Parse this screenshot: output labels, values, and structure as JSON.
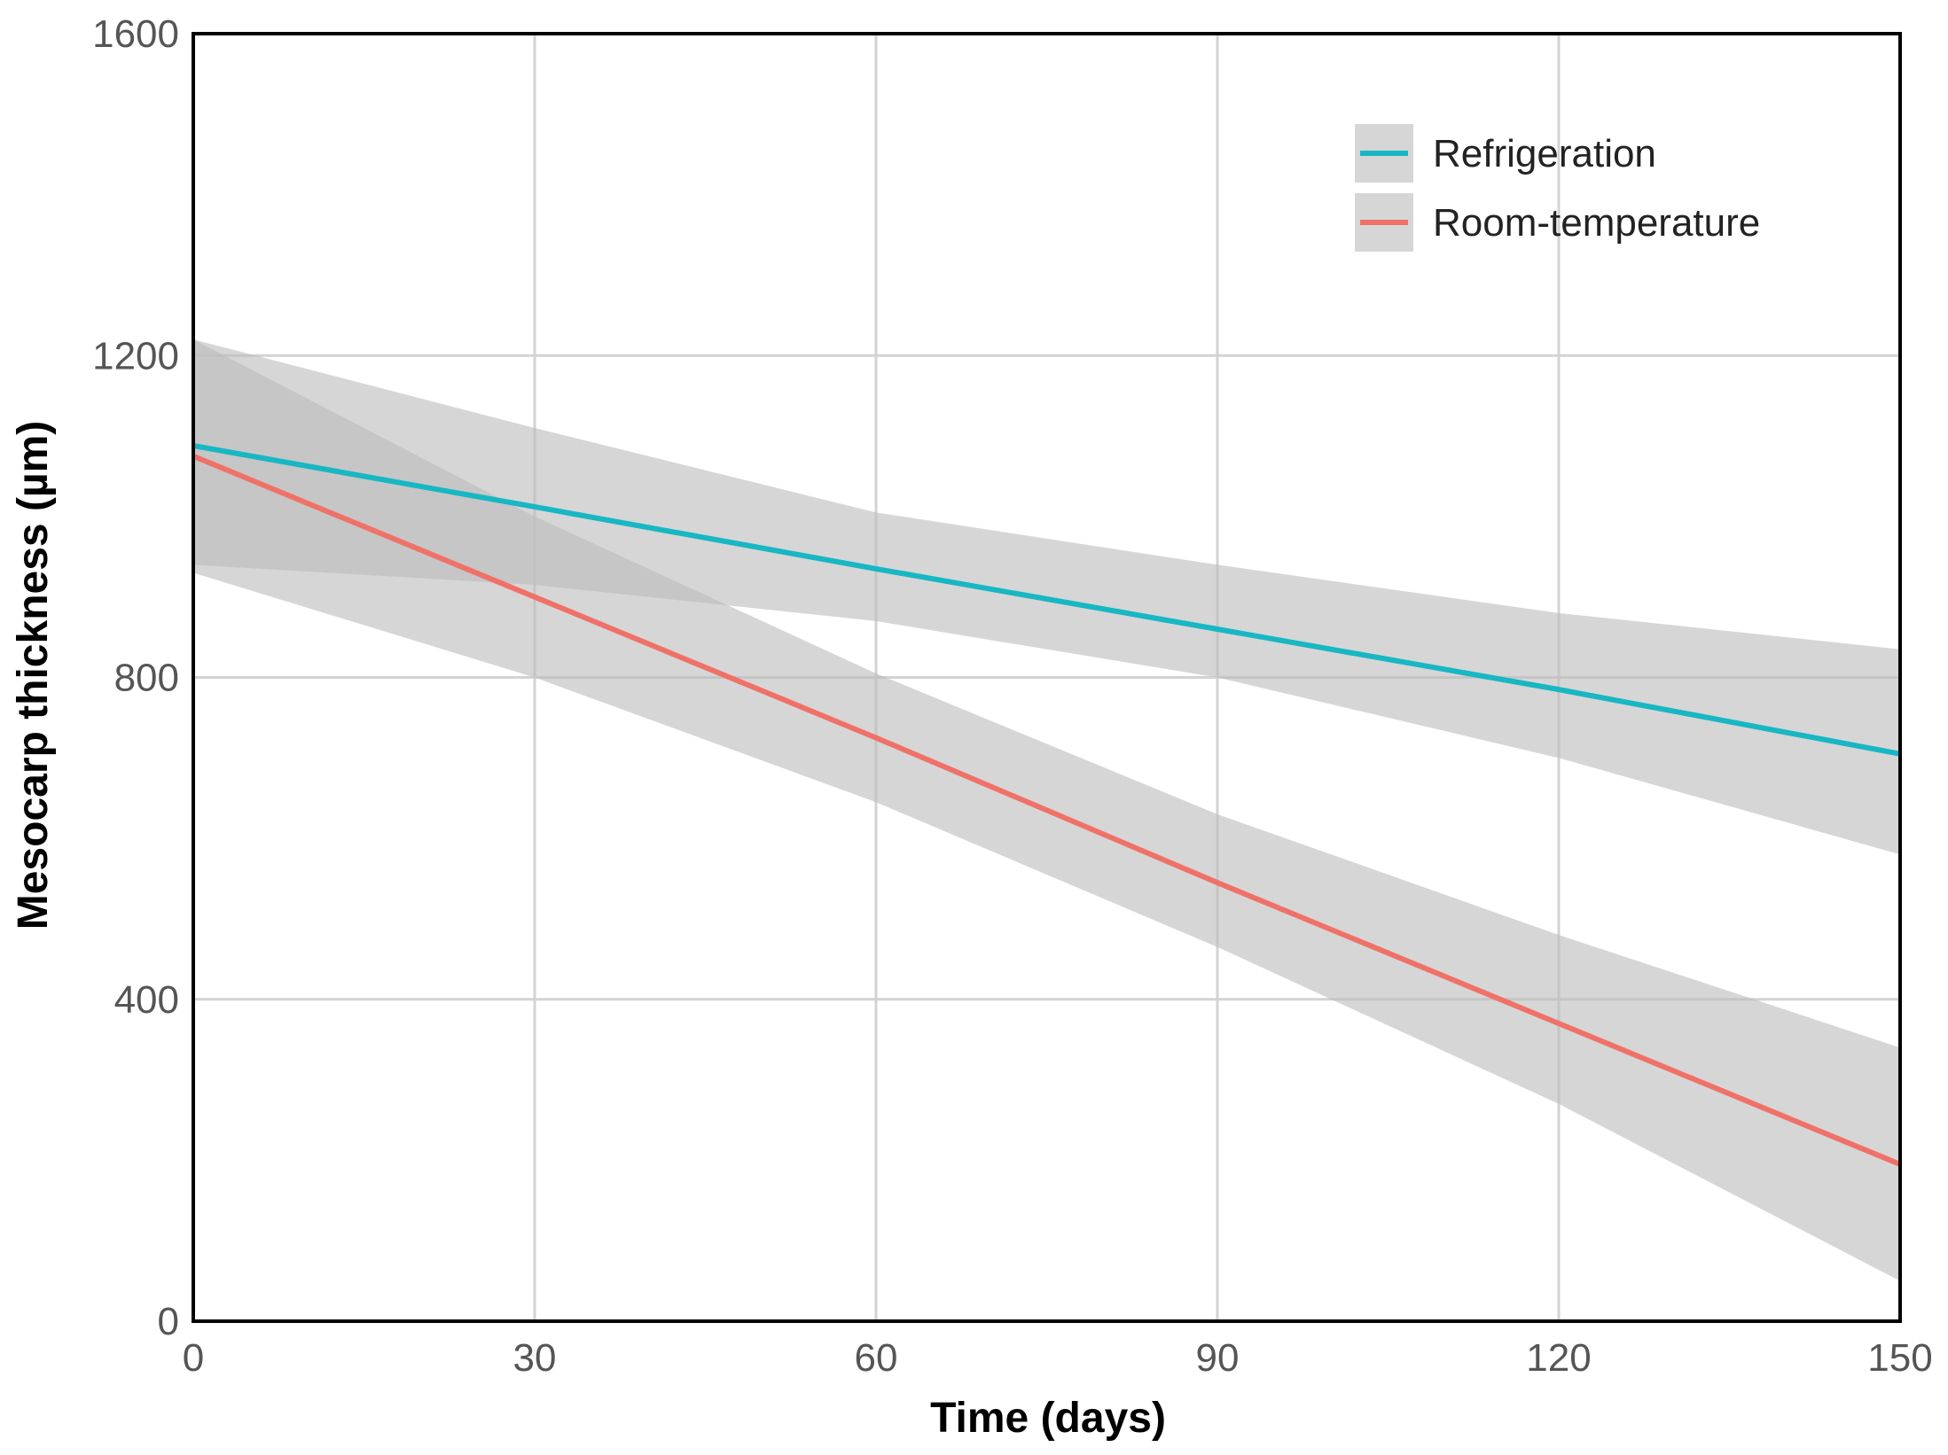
{
  "chart_data": {
    "type": "line",
    "title": "",
    "xlabel": "Time (days)",
    "ylabel": "Mesocarp thickness (µm)",
    "xlim": [
      0,
      150
    ],
    "ylim": [
      0,
      1600
    ],
    "xticks": [
      0,
      30,
      60,
      90,
      120,
      150
    ],
    "yticks": [
      0,
      400,
      800,
      1200,
      1600
    ],
    "xtick_labels": [
      "0",
      "30",
      "60",
      "90",
      "120",
      "150"
    ],
    "ytick_labels": [
      "0",
      "400",
      "800",
      "1200",
      "1600"
    ],
    "grid": true,
    "legend_position": "top-right",
    "confidence_band_color": "#bdbdbd",
    "series": [
      {
        "name": "Refrigeration",
        "color": "#17b7c3",
        "x": [
          0,
          30,
          60,
          90,
          120,
          150
        ],
        "y": [
          1088,
          1012,
          935,
          860,
          785,
          705
        ],
        "ci_lower": [
          940,
          915,
          870,
          800,
          700,
          580
        ],
        "ci_upper": [
          1220,
          1110,
          1005,
          940,
          880,
          835
        ]
      },
      {
        "name": "Room-temperature",
        "color": "#f07168",
        "x": [
          0,
          30,
          60,
          90,
          120,
          150
        ],
        "y": [
          1075,
          900,
          725,
          545,
          370,
          195
        ],
        "ci_lower": [
          930,
          800,
          645,
          465,
          270,
          50
        ],
        "ci_upper": [
          1220,
          1000,
          805,
          630,
          480,
          340
        ]
      }
    ]
  }
}
